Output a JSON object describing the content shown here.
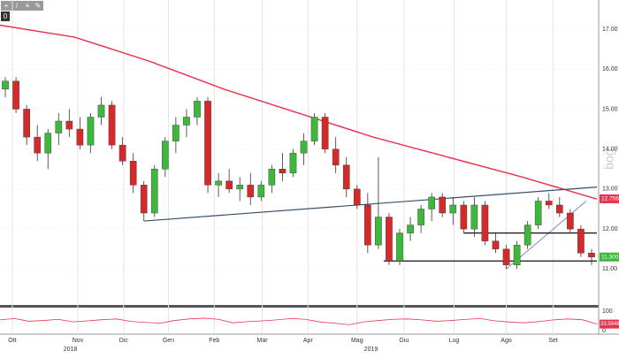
{
  "toolbar": {
    "buttons": [
      "+",
      "/",
      "≡",
      "✎"
    ],
    "counter": "0"
  },
  "watermark": "bog",
  "chart_data": {
    "type": "candlestick",
    "color_up": "#3db83d",
    "color_down": "#d42a2a",
    "grid": true,
    "xlim": [
      0,
      56
    ],
    "ylim": [
      10.1,
      17.73
    ],
    "yticks": [
      {
        "value": 17,
        "label": "17.00"
      },
      {
        "value": 16,
        "label": "16.00"
      },
      {
        "value": 15,
        "label": "15.00"
      },
      {
        "value": 14,
        "label": "14.00"
      },
      {
        "value": 13,
        "label": "13.00"
      },
      {
        "value": 12,
        "label": "12.00"
      },
      {
        "value": 11,
        "label": "11.00"
      }
    ],
    "xticks": [
      {
        "value": 1.16,
        "label": "Ott"
      },
      {
        "value": 7.3,
        "label": "Nov"
      },
      {
        "value": 11.6,
        "label": "Dic"
      },
      {
        "value": 15.8,
        "label": "Gen"
      },
      {
        "value": 20.1,
        "label": "Feb"
      },
      {
        "value": 24.6,
        "label": "Mar"
      },
      {
        "value": 28.9,
        "label": "Apr"
      },
      {
        "value": 33.5,
        "label": "Mag"
      },
      {
        "value": 37.9,
        "label": "Giu"
      },
      {
        "value": 42.6,
        "label": "Lug"
      },
      {
        "value": 47.5,
        "label": "Ago"
      },
      {
        "value": 51.9,
        "label": "Set"
      }
    ],
    "year_ticks": [
      {
        "value": 6.6,
        "label": "2018"
      },
      {
        "value": 34.8,
        "label": "2019"
      }
    ],
    "ohlc": [
      [
        15.5,
        15.8,
        15.3,
        15.7
      ],
      [
        15.7,
        15.8,
        14.9,
        15.0
      ],
      [
        15.0,
        15.1,
        14.1,
        14.3
      ],
      [
        14.3,
        14.6,
        13.7,
        13.9
      ],
      [
        13.9,
        14.5,
        13.5,
        14.4
      ],
      [
        14.4,
        14.9,
        14.1,
        14.7
      ],
      [
        14.7,
        15.0,
        14.3,
        14.5
      ],
      [
        14.5,
        14.8,
        14.0,
        14.1
      ],
      [
        14.1,
        14.9,
        13.9,
        14.8
      ],
      [
        14.8,
        15.3,
        14.6,
        15.1
      ],
      [
        15.1,
        15.2,
        14.0,
        14.1
      ],
      [
        14.1,
        14.3,
        13.6,
        13.7
      ],
      [
        13.7,
        13.9,
        12.9,
        13.1
      ],
      [
        13.1,
        13.2,
        12.2,
        12.4
      ],
      [
        12.4,
        13.6,
        12.3,
        13.5
      ],
      [
        13.5,
        14.3,
        13.3,
        14.2
      ],
      [
        14.2,
        14.8,
        13.9,
        14.6
      ],
      [
        14.6,
        15.0,
        14.3,
        14.8
      ],
      [
        14.8,
        15.3,
        14.6,
        15.2
      ],
      [
        15.2,
        15.3,
        12.9,
        13.1
      ],
      [
        13.1,
        13.4,
        12.8,
        13.2
      ],
      [
        13.2,
        13.5,
        12.9,
        13.0
      ],
      [
        13.0,
        13.3,
        12.7,
        13.1
      ],
      [
        13.1,
        13.4,
        12.6,
        12.8
      ],
      [
        12.8,
        13.2,
        12.7,
        13.1
      ],
      [
        13.1,
        13.6,
        12.9,
        13.5
      ],
      [
        13.5,
        13.9,
        13.2,
        13.4
      ],
      [
        13.4,
        14.0,
        13.3,
        13.9
      ],
      [
        13.9,
        14.4,
        13.6,
        14.2
      ],
      [
        14.2,
        14.9,
        14.1,
        14.8
      ],
      [
        14.8,
        14.9,
        13.9,
        14.0
      ],
      [
        14.0,
        14.3,
        13.4,
        13.6
      ],
      [
        13.6,
        13.8,
        12.8,
        13.0
      ],
      [
        13.0,
        13.1,
        12.5,
        12.6
      ],
      [
        12.6,
        12.9,
        11.4,
        11.6
      ],
      [
        11.6,
        13.8,
        11.5,
        12.3
      ],
      [
        12.3,
        12.4,
        11.1,
        11.2
      ],
      [
        11.2,
        12.0,
        11.1,
        11.9
      ],
      [
        11.9,
        12.3,
        11.7,
        12.1
      ],
      [
        12.1,
        12.6,
        11.9,
        12.5
      ],
      [
        12.5,
        12.9,
        12.2,
        12.8
      ],
      [
        12.8,
        12.9,
        12.3,
        12.4
      ],
      [
        12.4,
        12.8,
        12.1,
        12.6
      ],
      [
        12.6,
        12.7,
        11.9,
        12.0
      ],
      [
        12.0,
        12.8,
        11.8,
        12.6
      ],
      [
        12.6,
        12.7,
        11.6,
        11.7
      ],
      [
        11.7,
        11.9,
        11.4,
        11.5
      ],
      [
        11.5,
        11.6,
        11.0,
        11.1
      ],
      [
        11.1,
        11.7,
        11.0,
        11.6
      ],
      [
        11.6,
        12.2,
        11.5,
        12.1
      ],
      [
        12.1,
        12.8,
        12.0,
        12.7
      ],
      [
        12.7,
        12.9,
        12.5,
        12.6
      ],
      [
        12.6,
        12.8,
        12.3,
        12.4
      ],
      [
        12.4,
        12.5,
        11.9,
        12.0
      ],
      [
        12.0,
        12.1,
        11.3,
        11.4
      ],
      [
        11.4,
        11.5,
        11.1,
        11.3
      ]
    ],
    "moving_average": {
      "color": "#e8344e",
      "x": [
        0,
        7,
        14,
        21,
        28,
        35,
        42,
        49,
        56
      ],
      "values": [
        17.1,
        16.8,
        16.2,
        15.5,
        14.9,
        14.3,
        13.8,
        13.3,
        12.75
      ]
    },
    "lines": [
      {
        "color": "#34506e",
        "x": [
          13.5,
          56
        ],
        "values": [
          12.2,
          13.05
        ]
      },
      {
        "color": "#8aa0b8",
        "x": [
          47.5,
          55
        ],
        "values": [
          11.0,
          12.7
        ]
      },
      {
        "color": "#111111",
        "x": [
          43.5,
          56
        ],
        "values": [
          11.9,
          11.9
        ]
      },
      {
        "color": "#111111",
        "x": [
          36,
          56
        ],
        "values": [
          11.2,
          11.2
        ]
      }
    ],
    "price_tags": [
      {
        "price": 12.756,
        "color": "#e8344e"
      },
      {
        "price": {
          "value": 11.3,
          "label": "11.300"
        },
        "color": "#3db83d"
      }
    ],
    "indicator": {
      "color": "#e8344e",
      "ylim": [
        0,
        100
      ],
      "yticks": [
        0,
        100
      ],
      "tag_color": "#e8344e",
      "values": [
        55,
        62,
        48,
        52,
        58,
        45,
        50,
        56,
        60,
        47,
        42,
        38,
        52,
        60,
        64,
        58,
        40,
        46,
        50,
        55,
        62,
        58,
        44,
        38,
        30,
        45,
        52,
        58,
        60,
        55,
        48,
        52,
        58,
        62,
        50,
        44,
        40,
        46,
        55,
        60,
        56,
        33.5948
      ]
    }
  }
}
